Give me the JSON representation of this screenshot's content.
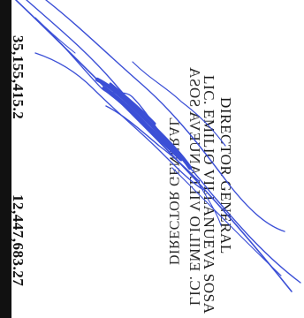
{
  "document": {
    "amount_top": "12,447,683.27",
    "amount_right": "35,155,415.2",
    "signer_name": "LIC. EMILIO VILLANUEVA SOSA",
    "signer_title": "DIRECTOR GENERAL",
    "signer_name_mirrored": "LIC. EMILIO VILLANUEVA SOSA",
    "signer_title_mirrored": "DIRECTOR GENERAL"
  },
  "colors": {
    "signature_ink": "#3b4fd6",
    "rule": "#111111",
    "text": "#1a1a1a"
  },
  "icons": {
    "signature": "handwritten-signature"
  }
}
